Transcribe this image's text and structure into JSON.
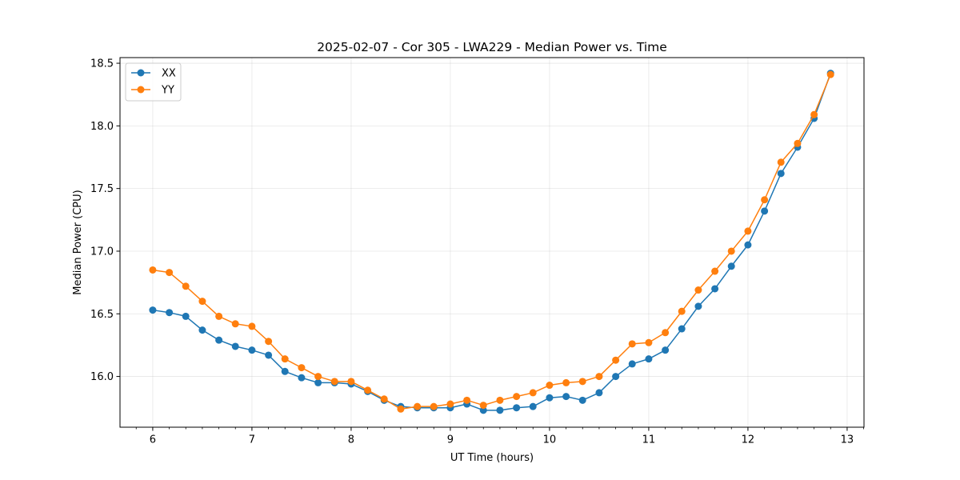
{
  "chart_data": {
    "type": "line",
    "title": "2025-02-07 - Cor 305 - LWA229 - Median Power vs. Time",
    "xlabel": "UT Time (hours)",
    "ylabel": "Median Power (CPU)",
    "xlim": [
      5.67,
      13.17
    ],
    "ylim": [
      15.595,
      18.545
    ],
    "xticks": [
      6,
      7,
      8,
      9,
      10,
      11,
      12,
      13
    ],
    "xtick_labels": [
      "6",
      "7",
      "8",
      "9",
      "10",
      "11",
      "12",
      "13"
    ],
    "yticks": [
      16.0,
      16.5,
      17.0,
      17.5,
      18.0,
      18.5
    ],
    "ytick_labels": [
      "16.0",
      "16.5",
      "17.0",
      "17.5",
      "18.0",
      "18.5"
    ],
    "grid": true,
    "legend_position": "top-left",
    "x": [
      6.0,
      6.167,
      6.333,
      6.5,
      6.667,
      6.833,
      7.0,
      7.167,
      7.333,
      7.5,
      7.667,
      7.833,
      8.0,
      8.167,
      8.333,
      8.5,
      8.667,
      8.833,
      9.0,
      9.167,
      9.333,
      9.5,
      9.667,
      9.833,
      10.0,
      10.167,
      10.333,
      10.5,
      10.667,
      10.833,
      11.0,
      11.167,
      11.333,
      11.5,
      11.667,
      11.833,
      12.0,
      12.167,
      12.333,
      12.5,
      12.667,
      12.833
    ],
    "series": [
      {
        "name": "XX",
        "color": "#1f77b4",
        "values": [
          16.53,
          16.51,
          16.48,
          16.37,
          16.29,
          16.24,
          16.21,
          16.17,
          16.04,
          15.99,
          15.95,
          15.95,
          15.94,
          15.88,
          15.81,
          15.76,
          15.75,
          15.75,
          15.75,
          15.78,
          15.73,
          15.73,
          15.75,
          15.76,
          15.83,
          15.84,
          15.81,
          15.87,
          16.0,
          16.1,
          16.14,
          16.21,
          16.38,
          16.56,
          16.7,
          16.88,
          17.05,
          17.32,
          17.62,
          17.83,
          18.06,
          18.42
        ]
      },
      {
        "name": "YY",
        "color": "#ff7f0e",
        "values": [
          16.85,
          16.83,
          16.72,
          16.6,
          16.48,
          16.42,
          16.4,
          16.28,
          16.14,
          16.07,
          16.0,
          15.96,
          15.96,
          15.89,
          15.82,
          15.74,
          15.76,
          15.76,
          15.78,
          15.81,
          15.77,
          15.81,
          15.84,
          15.87,
          15.93,
          15.95,
          15.96,
          16.0,
          16.13,
          16.26,
          16.27,
          16.35,
          16.52,
          16.69,
          16.84,
          17.0,
          17.16,
          17.41,
          17.71,
          17.86,
          18.09,
          18.41
        ]
      }
    ]
  }
}
